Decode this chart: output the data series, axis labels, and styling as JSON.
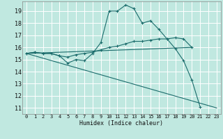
{
  "title": "",
  "xlabel": "Humidex (Indice chaleur)",
  "background_color": "#c0e8e0",
  "grid_color": "#ffffff",
  "line_color": "#1a6b6b",
  "xlim": [
    -0.5,
    23.5
  ],
  "ylim": [
    10.5,
    19.8
  ],
  "yticks": [
    11,
    12,
    13,
    14,
    15,
    16,
    17,
    18,
    19
  ],
  "xticks": [
    0,
    1,
    2,
    3,
    4,
    5,
    6,
    7,
    8,
    9,
    10,
    11,
    12,
    13,
    14,
    15,
    16,
    17,
    18,
    19,
    20,
    21,
    22,
    23
  ],
  "series": [
    {
      "x": [
        0,
        1,
        2,
        3,
        4,
        5,
        6,
        7,
        8,
        9,
        10,
        11,
        12,
        13,
        14,
        15,
        16,
        17,
        18,
        19,
        20,
        21
      ],
      "y": [
        15.5,
        15.6,
        15.5,
        15.5,
        15.3,
        14.7,
        15.0,
        14.9,
        15.5,
        16.4,
        19.0,
        19.0,
        19.5,
        19.2,
        18.0,
        18.2,
        17.5,
        16.7,
        15.9,
        14.9,
        13.3,
        11.1
      ],
      "has_markers": true
    },
    {
      "x": [
        0,
        1,
        2,
        3,
        4,
        5,
        6,
        7,
        8,
        9,
        10,
        11,
        12,
        13,
        14,
        15,
        16,
        17,
        18,
        19,
        20
      ],
      "y": [
        15.5,
        15.6,
        15.5,
        15.5,
        15.3,
        15.2,
        15.4,
        15.5,
        15.6,
        15.8,
        16.0,
        16.1,
        16.3,
        16.5,
        16.5,
        16.6,
        16.7,
        16.7,
        16.8,
        16.7,
        16.0
      ],
      "has_markers": true
    },
    {
      "x": [
        0,
        20
      ],
      "y": [
        15.5,
        16.0
      ],
      "has_markers": false
    },
    {
      "x": [
        0,
        23
      ],
      "y": [
        15.5,
        11.0
      ],
      "has_markers": false
    }
  ]
}
